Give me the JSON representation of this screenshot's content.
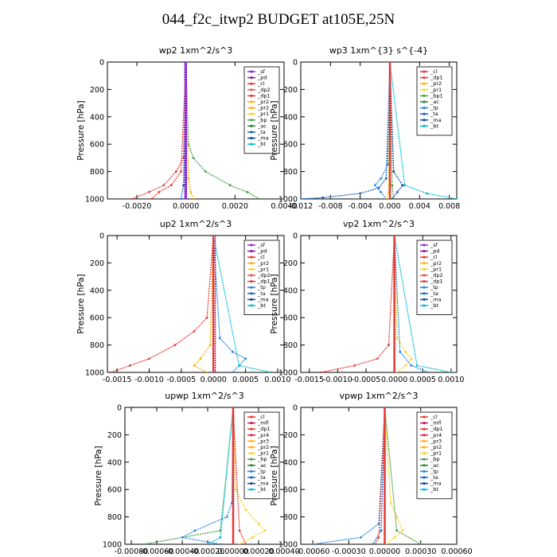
{
  "title": "044_f2c_itwp2  BUDGET at105E,25N",
  "colors": {
    "sf": "#8a2be2",
    "pd": "#7b1fa2",
    "cl": "#e53935",
    "dp1": "#e53935",
    "dp2": "#ef5350",
    "pr1": "#ffd21f",
    "pr2": "#ffb300",
    "pr4": "#d81b60",
    "bp": "#43a047",
    "ac": "#2e7d32",
    "tp": "#1e88e5",
    "ta": "#1565c0",
    "ma": "#0d47a1",
    "bt": "#00bcd4",
    "mfl": "#c2185b"
  },
  "chart_data": [
    {
      "type": "line",
      "title": "wp2   1xm^2/s^3",
      "ylabel": "Pressure  [hPa]",
      "ylim": [
        1000,
        0
      ],
      "xlim": [
        -0.0032,
        0.004
      ],
      "xticks": [
        -0.002,
        0.0,
        0.002,
        0.004
      ],
      "xtick_labels": [
        "-0.0020",
        "0.0000",
        "0.0020",
        "0.0040"
      ],
      "yticks": [
        0,
        200,
        400,
        600,
        800,
        1000
      ],
      "ytick_labels": [
        "0",
        "200",
        "400",
        "600",
        "800",
        "1000"
      ],
      "legend_position": "top-right",
      "legend": [
        "_sf",
        "_pd",
        "_cl",
        "_dp2",
        "_dp1",
        "_pr2",
        "_pr2",
        "_pr1",
        "_bp",
        "_ac",
        "_ta",
        "_ma",
        "_bt"
      ],
      "legend_keys": [
        "sf",
        "pd",
        "cl",
        "dp2",
        "dp1",
        "pr2",
        "pr2",
        "pr1",
        "bp",
        "ac",
        "ta",
        "ma",
        "bt"
      ],
      "series": [
        {
          "key": "bp",
          "p": [
            0,
            600,
            700,
            800,
            900,
            950,
            1000
          ],
          "v": [
            0,
            0.0001,
            0.0003,
            0.0008,
            0.0018,
            0.0025,
            0.003
          ]
        },
        {
          "key": "cl",
          "p": [
            0,
            700,
            800,
            900,
            950,
            1000
          ],
          "v": [
            0,
            -0.0001,
            -0.0004,
            -0.0009,
            -0.0015,
            -0.0022
          ]
        },
        {
          "key": "dp1",
          "p": [
            0,
            800,
            900,
            950,
            1000
          ],
          "v": [
            0,
            -0.0002,
            -0.0006,
            -0.0011,
            -0.0014
          ]
        },
        {
          "key": "pr2",
          "p": [
            0,
            850,
            950,
            1000
          ],
          "v": [
            0,
            0.0001,
            0.0002,
            0.0003
          ]
        },
        {
          "key": "ta",
          "p": [
            0,
            900,
            1000
          ],
          "v": [
            0,
            -0.0001,
            -0.0002
          ]
        },
        {
          "key": "pd",
          "p": [
            0,
            1000
          ],
          "v": [
            -5e-05,
            -5e-05
          ]
        },
        {
          "key": "sf",
          "p": [
            0,
            1000
          ],
          "v": [
            0,
            0
          ]
        }
      ]
    },
    {
      "type": "line",
      "title": "wp3   1xm^{3} s^{-4}",
      "ylabel": "Pressure  [hPa]",
      "ylim": [
        1000,
        0
      ],
      "xlim": [
        -0.012,
        0.009
      ],
      "xticks": [
        -0.012,
        -0.008,
        -0.004,
        0.0,
        0.004,
        0.008
      ],
      "xtick_labels": [
        "-0.012",
        "-0.008",
        "-0.004",
        "0.000",
        "0.004",
        "0.008"
      ],
      "yticks": [
        0,
        200,
        400,
        600,
        800,
        1000
      ],
      "ytick_labels": [
        "0",
        "200",
        "400",
        "600",
        "800",
        "1000"
      ],
      "legend_position": "top-right",
      "legend": [
        "_cl",
        "_dp1",
        "_pr2",
        "_pr1",
        "_bp1",
        "_ac",
        "_tp",
        "_ta",
        "_ma",
        "_bt"
      ],
      "legend_keys": [
        "cl",
        "dp1",
        "pr2",
        "pr1",
        "bp",
        "ac",
        "tp",
        "ta",
        "ma",
        "bt"
      ],
      "series": [
        {
          "key": "ta",
          "p": [
            0,
            850,
            920,
            960,
            990,
            1000
          ],
          "v": [
            0,
            -0.0005,
            -0.0015,
            -0.004,
            -0.009,
            -0.012
          ]
        },
        {
          "key": "bt",
          "p": [
            0,
            900,
            960,
            1000
          ],
          "v": [
            0,
            0.002,
            0.005,
            0.009
          ]
        },
        {
          "key": "tp",
          "p": [
            0,
            750,
            850,
            900,
            950,
            1000
          ],
          "v": [
            0,
            -0.0003,
            -0.0012,
            -0.002,
            -0.0012,
            -0.0005
          ]
        },
        {
          "key": "ma",
          "p": [
            0,
            800,
            900,
            950,
            1000
          ],
          "v": [
            0,
            0.0005,
            0.0017,
            0.001,
            0.0003
          ]
        },
        {
          "key": "bp",
          "p": [
            0,
            900,
            1000
          ],
          "v": [
            0,
            0.0003,
            0.0005
          ]
        },
        {
          "key": "pr1",
          "p": [
            0,
            950,
            1000
          ],
          "v": [
            0,
            -0.0002,
            -0.0004
          ]
        },
        {
          "key": "cl",
          "p": [
            0,
            1000
          ],
          "v": [
            0,
            0
          ]
        }
      ]
    },
    {
      "type": "line",
      "title": "up2   1xm^2/s^3",
      "ylabel": "Pressure  [hPa]",
      "ylim": [
        1000,
        0
      ],
      "xlim": [
        -0.00165,
        0.0011
      ],
      "xticks": [
        -0.0015,
        -0.001,
        -0.0005,
        0.0,
        0.0005,
        0.001
      ],
      "xtick_labels": [
        "-0.0015",
        "-0.0010",
        "-0.0005",
        "0.0000",
        "0.0005",
        "0.0010"
      ],
      "yticks": [
        0,
        200,
        400,
        600,
        800,
        1000
      ],
      "ytick_labels": [
        "0",
        "200",
        "400",
        "600",
        "800",
        "1000"
      ],
      "legend_position": "top-right",
      "legend": [
        "_sf",
        "_pd",
        "_cl",
        "_pr2",
        "_pr1",
        "_dp2",
        "_dp1",
        "_tp",
        "_ta",
        "_ma",
        "_bt"
      ],
      "legend_keys": [
        "sf",
        "pd",
        "cl",
        "pr2",
        "pr1",
        "dp2",
        "dp1",
        "tp",
        "ta",
        "ma",
        "bt"
      ],
      "series": [
        {
          "key": "dp1",
          "p": [
            0,
            600,
            700,
            800,
            900,
            950,
            1000
          ],
          "v": [
            0,
            -0.0001,
            -0.0003,
            -0.0006,
            -0.001,
            -0.0013,
            -0.0016
          ]
        },
        {
          "key": "tp",
          "p": [
            0,
            750,
            850,
            900,
            950,
            1000
          ],
          "v": [
            0,
            0.0001,
            0.0003,
            0.0005,
            0.0004,
            0.0003
          ]
        },
        {
          "key": "pr2",
          "p": [
            0,
            800,
            900,
            950,
            1000
          ],
          "v": [
            0,
            -5e-05,
            -0.0002,
            -0.0003,
            -0.0001
          ]
        },
        {
          "key": "bt",
          "p": [
            0,
            950,
            1000
          ],
          "v": [
            0,
            0.0004,
            0.0009
          ]
        },
        {
          "key": "cl",
          "p": [
            0,
            1000
          ],
          "v": [
            0,
            0
          ]
        },
        {
          "key": "pd",
          "p": [
            0,
            1000
          ],
          "v": [
            3e-05,
            3e-05
          ]
        }
      ]
    },
    {
      "type": "line",
      "title": "vp2   1xm^2/s^3",
      "ylabel": "Pressure  [hPa]",
      "ylim": [
        1000,
        0
      ],
      "xlim": [
        -0.00165,
        0.0011
      ],
      "xticks": [
        -0.0015,
        -0.001,
        -0.0005,
        0.0,
        0.0005,
        0.001
      ],
      "xtick_labels": [
        "-0.0015",
        "-0.0010",
        "-0.0005",
        "0.0000",
        "0.0005",
        "0.0010"
      ],
      "yticks": [
        0,
        200,
        400,
        600,
        800,
        1000
      ],
      "ytick_labels": [
        "0",
        "200",
        "400",
        "600",
        "800",
        "1000"
      ],
      "legend_position": "top-right",
      "legend": [
        "_sf",
        "_pd",
        "_cl",
        "_pr2",
        "_pr1",
        "_dp2",
        "_dp1",
        "_tp",
        "_ta",
        "_ma",
        "_bt"
      ],
      "legend_keys": [
        "sf",
        "pd",
        "cl",
        "pr2",
        "pr1",
        "dp2",
        "dp1",
        "tp",
        "ta",
        "ma",
        "bt"
      ],
      "series": [
        {
          "key": "pr1",
          "p": [
            0,
            750,
            850,
            900,
            950,
            1000
          ],
          "v": [
            0,
            5e-05,
            0.0002,
            0.0003,
            0.0002,
            5e-05
          ]
        },
        {
          "key": "dp1",
          "p": [
            0,
            800,
            900,
            950,
            1000
          ],
          "v": [
            0,
            -0.0001,
            -0.0003,
            -0.0007,
            -0.0013
          ]
        },
        {
          "key": "tp",
          "p": [
            0,
            850,
            950,
            1000
          ],
          "v": [
            0,
            0.0001,
            0.0003,
            0.0006
          ]
        },
        {
          "key": "bt",
          "p": [
            0,
            950,
            1000
          ],
          "v": [
            0,
            0.0004,
            0.001
          ]
        },
        {
          "key": "cl",
          "p": [
            0,
            1000
          ],
          "v": [
            0,
            0
          ]
        }
      ]
    },
    {
      "type": "line",
      "title": "upwp   1xm^2/s^3",
      "ylabel": "Pressure  [hPa]",
      "ylim": [
        1000,
        0
      ],
      "xlim": [
        -0.00085,
        0.0004
      ],
      "xticks": [
        -0.0008,
        -0.0006,
        -0.0004,
        -0.0002,
        0.0,
        0.0002,
        0.0004
      ],
      "xtick_labels": [
        "-0.00080",
        "-0.00060",
        "-0.00040",
        "-0.00020",
        "0.00000",
        "0.00020",
        "0.00040"
      ],
      "yticks": [
        0,
        200,
        400,
        600,
        800,
        1000
      ],
      "ytick_labels": [
        "0",
        "200",
        "400",
        "600",
        "800",
        "1000"
      ],
      "legend_position": "top-right",
      "legend": [
        "_cl",
        "_mfl",
        "_dp1",
        "_pr4",
        "_pr3",
        "_pr2",
        "_pr1",
        "_bp",
        "_ac",
        "_tp",
        "_ta",
        "_ma",
        "_bt"
      ],
      "legend_keys": [
        "cl",
        "mfl",
        "dp1",
        "pr4",
        "pr2",
        "pr2",
        "pr1",
        "bp",
        "ac",
        "tp",
        "ta",
        "ma",
        "bt"
      ],
      "series": [
        {
          "key": "pr1",
          "p": [
            0,
            600,
            750,
            850,
            900,
            950,
            1000
          ],
          "v": [
            0,
            2e-05,
            0.0001,
            0.0002,
            0.00025,
            0.00015,
            5e-05
          ]
        },
        {
          "key": "tp",
          "p": [
            0,
            700,
            800,
            900,
            950,
            1000
          ],
          "v": [
            0,
            -1e-05,
            -5e-05,
            -0.0003,
            -0.0004,
            -0.0001
          ]
        },
        {
          "key": "bp",
          "p": [
            0,
            900,
            1000
          ],
          "v": [
            0,
            -0.0001,
            -0.0007
          ]
        },
        {
          "key": "dp1",
          "p": [
            0,
            900,
            1000
          ],
          "v": [
            0,
            5e-05,
            0.0001
          ]
        },
        {
          "key": "bt",
          "p": [
            0,
            950,
            1000
          ],
          "v": [
            0,
            -0.0001,
            -0.0002
          ]
        },
        {
          "key": "cl",
          "p": [
            0,
            1000
          ],
          "v": [
            0,
            0
          ]
        }
      ]
    },
    {
      "type": "line",
      "title": "vpwp   1xm^2/s^3",
      "ylabel": "Pressure  [hPa]",
      "ylim": [
        1000,
        0
      ],
      "xlim": [
        -0.0007,
        0.0006
      ],
      "xticks": [
        -0.0006,
        -0.0003,
        0.0,
        0.0003,
        0.0006
      ],
      "xtick_labels": [
        "-0.00060",
        "-0.00030",
        "0.00000",
        "0.00030",
        "0.00060"
      ],
      "yticks": [
        0,
        200,
        400,
        600,
        800,
        1000
      ],
      "ytick_labels": [
        "0",
        "200",
        "400",
        "600",
        "800",
        "1000"
      ],
      "legend_position": "top-right",
      "legend": [
        "_cl",
        "_mfl",
        "_dp1",
        "_pr4",
        "_pr3",
        "_pr2",
        "_pr1",
        "_bp",
        "_ac",
        "_tp",
        "_ta",
        "_ma",
        "_bt"
      ],
      "legend_keys": [
        "cl",
        "mfl",
        "dp1",
        "pr4",
        "pr2",
        "pr2",
        "pr1",
        "bp",
        "ac",
        "tp",
        "ta",
        "ma",
        "bt"
      ],
      "series": [
        {
          "key": "pr1",
          "p": [
            0,
            700,
            800,
            900,
            950,
            1000
          ],
          "v": [
            0,
            5e-05,
            0.0001,
            0.00015,
            8e-05,
            2e-05
          ]
        },
        {
          "key": "tp",
          "p": [
            0,
            850,
            950,
            1000
          ],
          "v": [
            0,
            -5e-05,
            -0.0002,
            -0.0006
          ]
        },
        {
          "key": "ta",
          "p": [
            0,
            900,
            1000
          ],
          "v": [
            0,
            -3e-05,
            -0.0001
          ]
        },
        {
          "key": "bp",
          "p": [
            0,
            900,
            1000
          ],
          "v": [
            0,
            0.0001,
            0.0003
          ]
        },
        {
          "key": "dp1",
          "p": [
            0,
            950,
            1000
          ],
          "v": [
            0,
            -5e-05,
            -8e-05
          ]
        },
        {
          "key": "cl",
          "p": [
            0,
            1000
          ],
          "v": [
            0,
            0
          ]
        }
      ]
    }
  ]
}
